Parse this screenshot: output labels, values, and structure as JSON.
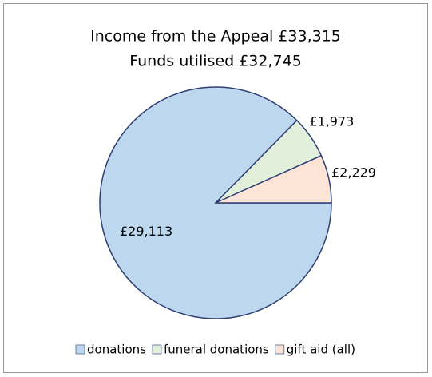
{
  "chart_data": {
    "type": "pie",
    "title": "Income from the Appeal £33,315",
    "subtitle": "Funds utilised £32,745",
    "categories": [
      "donations",
      "funeral donations",
      "gift aid (all)"
    ],
    "values": [
      29113,
      1973,
      2229
    ],
    "value_labels": [
      "£29,113",
      "£1,973",
      "£2,229"
    ],
    "colors": [
      "#bdd7ee",
      "#e2efda",
      "#fce4d6"
    ],
    "legend": "bottom"
  }
}
